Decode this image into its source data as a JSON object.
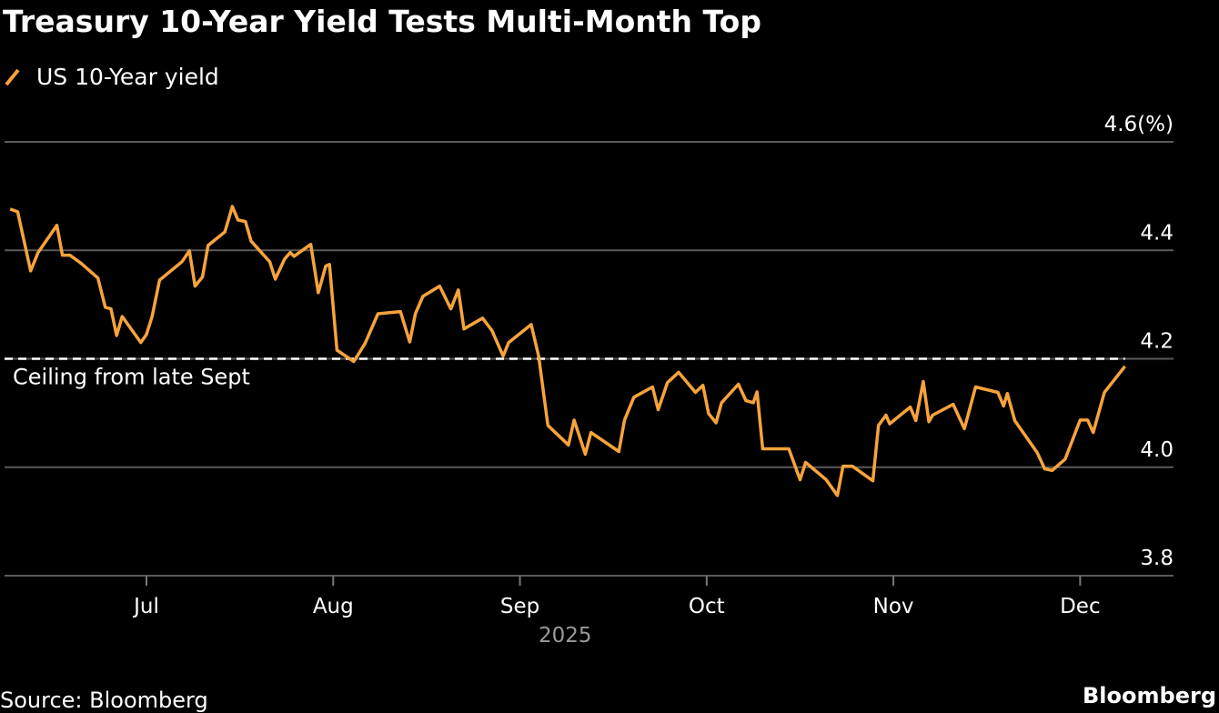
{
  "chart_data": {
    "type": "line",
    "title": "Treasury 10-Year Yield Tests Multi-Month Top",
    "source": "Source: Bloomberg",
    "brand": "Bloomberg",
    "x_label": "2025",
    "xlim": [
      6.24,
      12.5
    ],
    "xticks": [
      {
        "value": 7,
        "label": "Jul"
      },
      {
        "value": 8,
        "label": "Aug"
      },
      {
        "value": 9,
        "label": "Sep"
      },
      {
        "value": 10,
        "label": "Oct"
      },
      {
        "value": 11,
        "label": "Nov"
      },
      {
        "value": 12,
        "label": "Dec"
      }
    ],
    "ylim": [
      3.8,
      4.6
    ],
    "yticks": [
      3.8,
      {
        "value": 4,
        "label": "4.0"
      },
      4.2,
      4.4,
      {
        "value": 4.6,
        "label": "4.6(%)"
      }
    ],
    "grid": true,
    "reference_line": {
      "value": 4.2,
      "label": "Ceiling from late Sept",
      "color": "#ffffff"
    },
    "x": [
      6.27,
      6.31,
      6.38,
      6.42,
      6.52,
      6.55,
      6.59,
      6.65,
      6.74,
      6.78,
      6.81,
      6.84,
      6.87,
      6.97,
      7.0,
      7.03,
      7.07,
      7.19,
      7.23,
      7.26,
      7.3,
      7.33,
      7.42,
      7.46,
      7.49,
      7.53,
      7.56,
      7.66,
      7.69,
      7.74,
      7.77,
      7.79,
      7.88,
      7.92,
      7.96,
      7.98,
      8.02,
      8.11,
      8.17,
      8.24,
      8.36,
      8.41,
      8.44,
      8.48,
      8.57,
      8.63,
      8.67,
      8.7,
      8.8,
      8.85,
      8.91,
      8.94,
      9.06,
      9.1,
      9.15,
      9.26,
      9.29,
      9.35,
      9.38,
      9.53,
      9.56,
      9.61,
      9.71,
      9.74,
      9.79,
      9.85,
      9.94,
      9.98,
      10.01,
      10.05,
      10.08,
      10.17,
      10.21,
      10.25,
      10.27,
      10.3,
      10.44,
      10.5,
      10.53,
      10.64,
      10.7,
      10.73,
      10.78,
      10.89,
      10.92,
      10.96,
      10.98,
      11.09,
      11.12,
      11.16,
      11.19,
      11.21,
      11.32,
      11.38,
      11.44,
      11.56,
      11.59,
      11.61,
      11.65,
      11.77,
      11.81,
      11.85,
      11.92,
      12.0,
      12.04,
      12.07,
      12.13,
      12.24
    ],
    "series": [
      {
        "name": "US 10-Year yield",
        "color": "#f7a33c",
        "values": [
          4.476,
          4.471,
          4.362,
          4.396,
          4.446,
          4.391,
          4.391,
          4.376,
          4.349,
          4.295,
          4.292,
          4.243,
          4.278,
          4.23,
          4.245,
          4.278,
          4.345,
          4.379,
          4.399,
          4.334,
          4.351,
          4.409,
          4.434,
          4.481,
          4.456,
          4.453,
          4.417,
          4.379,
          4.347,
          4.384,
          4.396,
          4.389,
          4.411,
          4.322,
          4.371,
          4.374,
          4.216,
          4.195,
          4.228,
          4.283,
          4.287,
          4.231,
          4.283,
          4.315,
          4.334,
          4.292,
          4.327,
          4.255,
          4.275,
          4.252,
          4.205,
          4.23,
          4.263,
          4.205,
          4.077,
          4.041,
          4.087,
          4.024,
          4.064,
          4.029,
          4.087,
          4.129,
          4.148,
          4.106,
          4.156,
          4.175,
          4.138,
          4.151,
          4.099,
          4.082,
          4.119,
          4.153,
          4.123,
          4.119,
          4.139,
          4.034,
          4.034,
          3.977,
          4.009,
          3.977,
          3.948,
          4.002,
          4.002,
          3.975,
          4.077,
          4.096,
          4.08,
          4.111,
          4.086,
          4.158,
          4.084,
          4.096,
          4.116,
          4.071,
          4.148,
          4.138,
          4.113,
          4.136,
          4.086,
          4.027,
          3.997,
          3.994,
          4.015,
          4.087,
          4.087,
          4.064,
          4.138,
          4.186
        ]
      }
    ]
  }
}
